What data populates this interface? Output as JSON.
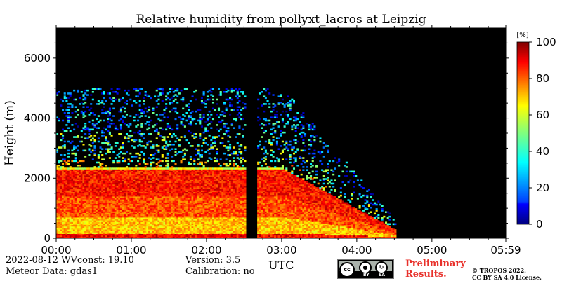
{
  "chart_data": {
    "type": "heatmap",
    "title": "Relative humidity from pollyxt_lacros at Leipzig",
    "xlabel": "UTC",
    "ylabel": "Height (m)",
    "x_ticks": [
      "00:00",
      "01:00",
      "02:00",
      "03:00",
      "04:00",
      "05:00",
      "05:59"
    ],
    "x_range_hours": [
      0,
      5.983
    ],
    "y_ticks": [
      0,
      2000,
      4000,
      6000
    ],
    "ylim": [
      0,
      7000
    ],
    "colorbar": {
      "unit": "[%]",
      "ticks": [
        0,
        20,
        40,
        60,
        80,
        100
      ],
      "range": [
        0,
        100
      ],
      "colormap": "jet"
    },
    "background_color": "#000000",
    "data_gap_hours": [
      2.5,
      2.67
    ],
    "data_end_hours": 4.5,
    "profile_layers": [
      {
        "from_m": 0,
        "to_m": 150,
        "rh": 88
      },
      {
        "from_m": 150,
        "to_m": 700,
        "rh": 68
      },
      {
        "from_m": 700,
        "to_m": 1400,
        "rh": 80
      },
      {
        "from_m": 1400,
        "to_m": 2300,
        "rh": 86
      },
      {
        "from_m": 2300,
        "to_m": 2600,
        "rh": 60
      },
      {
        "from_m": 2600,
        "to_m": 3500,
        "rh": 40
      },
      {
        "from_m": 3500,
        "to_m": 5000,
        "rh": 25
      }
    ]
  },
  "footer": {
    "date_line": "2022-08-12    WVconst:  19.10",
    "meteor_line": "Meteor Data: gdas1",
    "version_line": "Version: 3.5",
    "calibration_line": "Calibration: no",
    "utc_label": "UTC",
    "preliminary": "Preliminary",
    "results": "Results.",
    "copyright": "© TROPOS 2022.",
    "license": "CC BY SA 4.0 License.",
    "cc_badge": "cc",
    "by_label": "BY",
    "sa_label": "SA"
  }
}
